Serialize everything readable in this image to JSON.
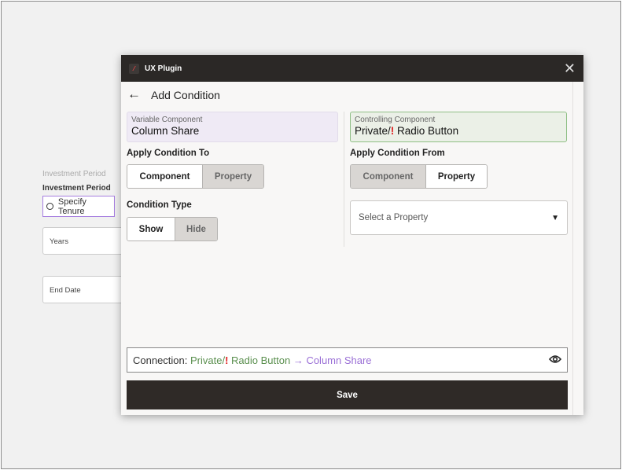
{
  "background": {
    "label_light": "Investment Period",
    "label": "Investment Period",
    "radio_option": "Specify Tenure",
    "field_years": "Years",
    "field_end_date": "End Date"
  },
  "modal": {
    "app_title": "UX Plugin",
    "page_title": "Add Condition",
    "variable_component": {
      "label": "Variable Component",
      "value": "Column Share"
    },
    "controlling_component": {
      "label": "Controlling Component",
      "value_prefix": "Private/",
      "value_mark": "!",
      "value_suffix": " Radio Button"
    },
    "apply_to": {
      "label": "Apply Condition To",
      "options": [
        "Component",
        "Property"
      ],
      "selected": "Component"
    },
    "condition_type": {
      "label": "Condition Type",
      "options": [
        "Show",
        "Hide"
      ],
      "selected": "Show"
    },
    "apply_from": {
      "label": "Apply Condition From",
      "options": [
        "Component",
        "Property"
      ],
      "selected": "Property"
    },
    "property_select": {
      "placeholder": "Select a Property"
    },
    "connection": {
      "label": "Connection: ",
      "source_prefix": "Private/",
      "source_mark": "!",
      "source_suffix": " Radio Button",
      "arrow": " → ",
      "target": "Column Share"
    },
    "save_label": "Save"
  },
  "colors": {
    "header": "#2b2826",
    "variable": "#9a6fd6",
    "controlling": "#5a8f4e",
    "save": "#2f2a27",
    "alert": "#e01f1f"
  }
}
